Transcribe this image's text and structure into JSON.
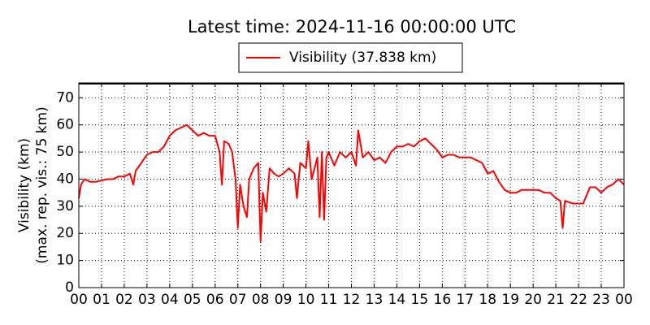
{
  "chart_data": {
    "type": "line",
    "title": "Latest time: 2024-11-16 00:00:00 UTC",
    "ylabel": [
      "Visibility (km)",
      "(max. rep. vis.: 75 km)"
    ],
    "xlim": [
      0,
      24
    ],
    "ylim": [
      0,
      75.5
    ],
    "yticks": [
      0,
      10,
      20,
      30,
      40,
      50,
      60,
      70
    ],
    "xticks": [
      {
        "value": 0,
        "label": "00"
      },
      {
        "value": 1,
        "label": "01"
      },
      {
        "value": 2,
        "label": "02"
      },
      {
        "value": 3,
        "label": "03"
      },
      {
        "value": 4,
        "label": "04"
      },
      {
        "value": 5,
        "label": "05"
      },
      {
        "value": 6,
        "label": "06"
      },
      {
        "value": 7,
        "label": "07"
      },
      {
        "value": 8,
        "label": "08"
      },
      {
        "value": 9,
        "label": "09"
      },
      {
        "value": 10,
        "label": "10"
      },
      {
        "value": 11,
        "label": "11"
      },
      {
        "value": 12,
        "label": "12"
      },
      {
        "value": 13,
        "label": "13"
      },
      {
        "value": 14,
        "label": "14"
      },
      {
        "value": 15,
        "label": "15"
      },
      {
        "value": 16,
        "label": "16"
      },
      {
        "value": 17,
        "label": "17"
      },
      {
        "value": 18,
        "label": "18"
      },
      {
        "value": 19,
        "label": "19"
      },
      {
        "value": 20,
        "label": "20"
      },
      {
        "value": 21,
        "label": "21"
      },
      {
        "value": 22,
        "label": "22"
      },
      {
        "value": 23,
        "label": "23"
      },
      {
        "value": 24,
        "label": "00"
      }
    ],
    "grid": true,
    "legend": "top",
    "x": [
      0,
      0.1,
      0.25,
      0.5,
      0.75,
      1,
      1.25,
      1.5,
      1.75,
      2,
      2.25,
      2.4,
      2.5,
      2.75,
      3,
      3.25,
      3.5,
      3.75,
      4,
      4.25,
      4.5,
      4.75,
      5,
      5.25,
      5.5,
      5.75,
      6,
      6.2,
      6.3,
      6.4,
      6.6,
      6.75,
      6.9,
      7,
      7.1,
      7.25,
      7.4,
      7.5,
      7.7,
      7.9,
      8,
      8.1,
      8.25,
      8.4,
      8.6,
      8.8,
      9,
      9.25,
      9.5,
      9.6,
      9.75,
      10,
      10.1,
      10.25,
      10.5,
      10.6,
      10.7,
      10.8,
      10.9,
      11,
      11.25,
      11.5,
      11.75,
      12,
      12.2,
      12.3,
      12.5,
      12.75,
      13,
      13.25,
      13.5,
      13.75,
      14,
      14.25,
      14.5,
      14.75,
      15,
      15.25,
      15.5,
      15.75,
      16,
      16.25,
      16.5,
      16.75,
      17,
      17.25,
      17.5,
      17.75,
      18,
      18.25,
      18.5,
      18.75,
      19,
      19.25,
      19.5,
      19.75,
      20,
      20.25,
      20.5,
      20.75,
      21,
      21.2,
      21.3,
      21.4,
      21.75,
      22,
      22.2,
      22.5,
      22.75,
      23,
      23.25,
      23.5,
      23.75,
      24
    ],
    "series": [
      {
        "name": "Visibility (37.838 km)",
        "color": "#ff0000",
        "values": [
          33,
          38,
          40,
          39,
          39,
          39.5,
          40,
          40,
          41,
          41,
          42,
          38,
          43,
          46,
          49,
          50,
          50,
          52,
          56,
          58,
          59,
          60,
          58,
          56,
          57,
          56,
          56,
          50,
          38,
          54,
          53,
          50,
          40,
          22,
          38,
          30,
          26,
          40,
          44,
          46,
          17,
          35,
          28,
          44,
          42,
          41,
          42,
          44,
          42,
          33,
          46,
          44,
          54,
          40,
          48,
          26,
          50,
          25,
          48,
          50,
          45,
          50,
          48,
          50,
          45,
          58,
          48,
          50,
          47,
          48,
          46,
          50,
          52,
          52,
          53,
          52,
          54,
          55,
          53,
          51,
          48,
          49,
          49,
          48,
          48,
          48,
          47,
          46,
          42,
          43,
          39,
          36,
          35,
          35,
          36,
          36,
          36,
          36,
          35,
          35,
          33,
          32,
          22,
          32,
          31,
          31,
          31,
          37,
          37,
          35,
          37,
          38,
          40,
          38
        ]
      }
    ]
  }
}
